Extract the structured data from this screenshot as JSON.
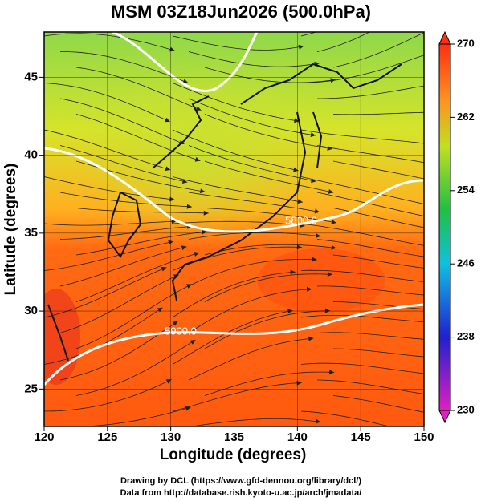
{
  "chart_data": {
    "type": "map",
    "title": "MSM 03Z18Jun2026 (500.0hPa)",
    "x_label": "Longitude (degrees)",
    "y_label": "Latitude  (degrees)",
    "xlim": [
      120,
      150
    ],
    "xticks": [
      120,
      125,
      130,
      135,
      140,
      145,
      150
    ],
    "ylim": [
      22.6,
      47.9
    ],
    "yticks": [
      25,
      30,
      35,
      40,
      45
    ],
    "colorbar": {
      "lim": [
        230,
        270
      ],
      "ticks": [
        270,
        262,
        254,
        246,
        238,
        230
      ]
    },
    "contour_labels": [
      "5900.0",
      "5800.0"
    ],
    "credits": [
      "Drawing by DCL (https://www.gfd-dennou.org/library/dcl/)",
      "Data from http://database.rish.kyoto-u.ac.jp/arch/jmadata/"
    ]
  }
}
